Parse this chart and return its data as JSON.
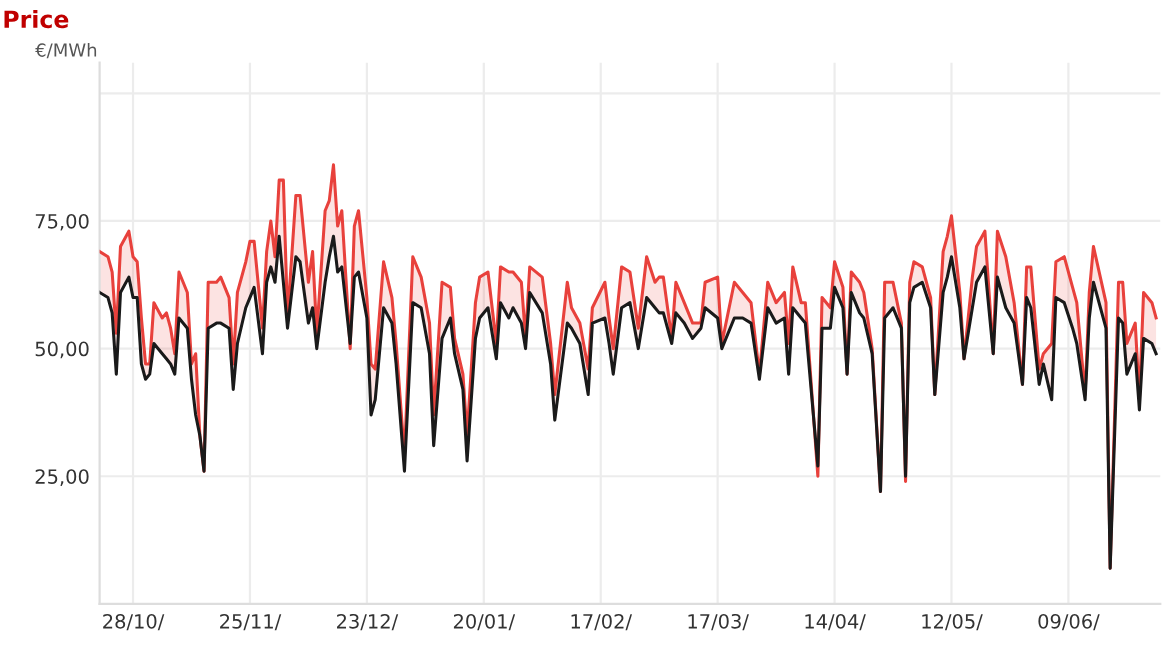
{
  "chart_data": {
    "type": "line",
    "title": "Price",
    "ylabel": "€/MWh",
    "xlim": [
      "2010-10-20",
      "2011-07-01"
    ],
    "ylim": [
      0,
      106
    ],
    "xticks": [
      {
        "value": "2010-10-28",
        "label": "28/10/"
      },
      {
        "value": "2010-11-25",
        "label": "25/11/"
      },
      {
        "value": "2010-12-23",
        "label": "23/12/"
      },
      {
        "value": "2011-01-20",
        "label": "20/01/"
      },
      {
        "value": "2011-02-17",
        "label": "17/02/"
      },
      {
        "value": "2011-03-17",
        "label": "17/03/"
      },
      {
        "value": "2011-04-14",
        "label": "14/04/"
      },
      {
        "value": "2011-05-12",
        "label": "12/05/"
      },
      {
        "value": "2011-06-09",
        "label": "09/06/"
      }
    ],
    "yticks": [
      {
        "value": 25,
        "label": "25,00"
      },
      {
        "value": 50,
        "label": "50,00"
      },
      {
        "value": 75,
        "label": "75,00"
      },
      {
        "value": 100,
        "label": null
      }
    ],
    "grid": true,
    "marker": "none",
    "line_style": "solid",
    "x": [
      "2010-10-20",
      "2010-10-22",
      "2010-10-23",
      "2010-10-24",
      "2010-10-25",
      "2010-10-27",
      "2010-10-28",
      "2010-10-29",
      "2010-10-30",
      "2010-10-31",
      "2010-11-01",
      "2010-11-02",
      "2010-11-04",
      "2010-11-05",
      "2010-11-06",
      "2010-11-07",
      "2010-11-08",
      "2010-11-10",
      "2010-11-11",
      "2010-11-12",
      "2010-11-13",
      "2010-11-14",
      "2010-11-15",
      "2010-11-17",
      "2010-11-18",
      "2010-11-20",
      "2010-11-21",
      "2010-11-22",
      "2010-11-24",
      "2010-11-25",
      "2010-11-26",
      "2010-11-28",
      "2010-11-29",
      "2010-11-30",
      "2010-12-01",
      "2010-12-02",
      "2010-12-03",
      "2010-12-04",
      "2010-12-06",
      "2010-12-07",
      "2010-12-09",
      "2010-12-10",
      "2010-12-11",
      "2010-12-13",
      "2010-12-14",
      "2010-12-15",
      "2010-12-16",
      "2010-12-17",
      "2010-12-19",
      "2010-12-20",
      "2010-12-21",
      "2010-12-23",
      "2010-12-24",
      "2010-12-25",
      "2010-12-27",
      "2010-12-29",
      "2010-12-30",
      "2011-01-01",
      "2011-01-03",
      "2011-01-05",
      "2011-01-07",
      "2011-01-08",
      "2011-01-10",
      "2011-01-12",
      "2011-01-13",
      "2011-01-15",
      "2011-01-16",
      "2011-01-18",
      "2011-01-19",
      "2011-01-21",
      "2011-01-23",
      "2011-01-24",
      "2011-01-26",
      "2011-01-27",
      "2011-01-29",
      "2011-01-30",
      "2011-01-31",
      "2011-02-03",
      "2011-02-05",
      "2011-02-06",
      "2011-02-09",
      "2011-02-10",
      "2011-02-12",
      "2011-02-14",
      "2011-02-15",
      "2011-02-18",
      "2011-02-19",
      "2011-02-20",
      "2011-02-22",
      "2011-02-24",
      "2011-02-26",
      "2011-02-28",
      "2011-03-02",
      "2011-03-03",
      "2011-03-04",
      "2011-03-06",
      "2011-03-07",
      "2011-03-09",
      "2011-03-11",
      "2011-03-13",
      "2011-03-14",
      "2011-03-17",
      "2011-03-18",
      "2011-03-21",
      "2011-03-23",
      "2011-03-25",
      "2011-03-27",
      "2011-03-29",
      "2011-03-31",
      "2011-04-02",
      "2011-04-03",
      "2011-04-04",
      "2011-04-06",
      "2011-04-07",
      "2011-04-10",
      "2011-04-11",
      "2011-04-13",
      "2011-04-14",
      "2011-04-16",
      "2011-04-17",
      "2011-04-18",
      "2011-04-20",
      "2011-04-21",
      "2011-04-23",
      "2011-04-25",
      "2011-04-26",
      "2011-04-28",
      "2011-04-30",
      "2011-05-01",
      "2011-05-02",
      "2011-05-03",
      "2011-05-05",
      "2011-05-07",
      "2011-05-08",
      "2011-05-10",
      "2011-05-11",
      "2011-05-12",
      "2011-05-14",
      "2011-05-15",
      "2011-05-17",
      "2011-05-18",
      "2011-05-20",
      "2011-05-22",
      "2011-05-23",
      "2011-05-25",
      "2011-05-27",
      "2011-05-29",
      "2011-05-30",
      "2011-05-31",
      "2011-06-02",
      "2011-06-03",
      "2011-06-05",
      "2011-06-06",
      "2011-06-08",
      "2011-06-10",
      "2011-06-11",
      "2011-06-13",
      "2011-06-14",
      "2011-06-15",
      "2011-06-18",
      "2011-06-19",
      "2011-06-21",
      "2011-06-22",
      "2011-06-23",
      "2011-06-25",
      "2011-06-26",
      "2011-06-27",
      "2011-06-29",
      "2011-06-30"
    ],
    "series": [
      {
        "color": "#e8413c",
        "values": [
          69,
          68,
          65,
          53,
          70,
          73,
          68,
          67,
          56,
          47,
          47,
          59,
          56,
          57,
          54,
          49,
          65,
          61,
          47,
          49,
          33,
          26,
          63,
          63,
          64,
          60,
          47,
          61,
          67,
          71,
          71,
          54,
          69,
          75,
          68,
          83,
          83,
          56,
          80,
          80,
          63,
          69,
          53,
          77,
          79,
          86,
          74,
          77,
          50,
          74,
          77,
          60,
          47,
          46,
          67,
          60,
          51,
          29,
          68,
          64,
          55,
          37,
          63,
          62,
          52,
          45,
          33,
          59,
          64,
          65,
          51,
          66,
          65,
          65,
          63,
          52,
          66,
          64,
          51,
          41,
          63,
          58,
          55,
          46,
          58,
          63,
          56,
          50,
          66,
          65,
          54,
          68,
          63,
          64,
          64,
          52,
          63,
          59,
          55,
          55,
          63,
          64,
          51,
          63,
          61,
          59,
          45,
          63,
          59,
          61,
          51,
          66,
          59,
          59,
          25,
          60,
          58,
          67,
          62,
          45,
          65,
          63,
          61,
          50,
          22,
          63,
          63,
          55,
          24,
          63,
          67,
          66,
          60,
          41,
          69,
          72,
          76,
          61,
          48,
          64,
          70,
          73,
          49,
          73,
          68,
          59,
          43,
          66,
          66,
          46,
          49,
          51,
          67,
          68,
          62,
          59,
          41,
          61,
          70,
          59,
          7,
          63,
          63,
          51,
          55,
          40,
          61,
          59,
          56
        ]
      },
      {
        "color": "#1a1a1a",
        "values": [
          61,
          60,
          57,
          45,
          61,
          64,
          60,
          60,
          47,
          44,
          45,
          51,
          49,
          48,
          47,
          45,
          56,
          54,
          44,
          37,
          33,
          26,
          54,
          55,
          55,
          54,
          42,
          51,
          58,
          60,
          62,
          49,
          63,
          66,
          63,
          72,
          63,
          54,
          68,
          67,
          55,
          58,
          50,
          63,
          68,
          72,
          65,
          66,
          51,
          64,
          65,
          56,
          37,
          40,
          58,
          55,
          47,
          26,
          59,
          58,
          49,
          31,
          52,
          56,
          49,
          42,
          28,
          52,
          56,
          58,
          48,
          59,
          56,
          58,
          55,
          50,
          61,
          57,
          47,
          36,
          55,
          54,
          51,
          41,
          55,
          56,
          51,
          45,
          58,
          59,
          50,
          60,
          58,
          57,
          57,
          51,
          57,
          55,
          52,
          54,
          58,
          56,
          50,
          56,
          56,
          55,
          44,
          58,
          55,
          56,
          45,
          58,
          56,
          55,
          27,
          54,
          54,
          62,
          58,
          45,
          61,
          57,
          56,
          49,
          22,
          56,
          58,
          54,
          25,
          59,
          62,
          63,
          58,
          41,
          61,
          64,
          68,
          58,
          48,
          58,
          63,
          66,
          49,
          64,
          58,
          55,
          43,
          60,
          58,
          43,
          47,
          40,
          60,
          59,
          54,
          51,
          40,
          56,
          63,
          54,
          7,
          56,
          55,
          45,
          49,
          38,
          52,
          51,
          49
        ]
      }
    ]
  }
}
